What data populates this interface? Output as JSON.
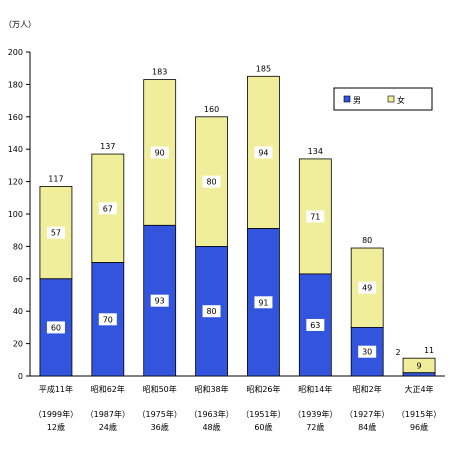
{
  "chart_data": {
    "type": "bar",
    "stacked": true,
    "unit_label": "（万人）",
    "ylim": [
      0,
      200
    ],
    "yticks": [
      0,
      20,
      40,
      60,
      80,
      100,
      120,
      140,
      160,
      180,
      200
    ],
    "grid": false,
    "legend_position": "top-right",
    "categories": [
      {
        "era": "平成11年",
        "year": "（1999年）",
        "age": "12歳"
      },
      {
        "era": "昭和62年",
        "year": "（1987年）",
        "age": "24歳"
      },
      {
        "era": "昭和50年",
        "year": "（1975年）",
        "age": "36歳"
      },
      {
        "era": "昭和38年",
        "year": "（1963年）",
        "age": "48歳"
      },
      {
        "era": "昭和26年",
        "year": "（1951年）",
        "age": "60歳"
      },
      {
        "era": "昭和14年",
        "year": "（1939年）",
        "age": "72歳"
      },
      {
        "era": "昭和2年",
        "year": "（1927年）",
        "age": "84歳"
      },
      {
        "era": "大正4年",
        "year": "（1915年）",
        "age": "96歳"
      }
    ],
    "series": [
      {
        "name": "男",
        "color": "#3355dd",
        "values": [
          60,
          70,
          93,
          80,
          91,
          63,
          30,
          2
        ]
      },
      {
        "name": "女",
        "color": "#f0ee9a",
        "values": [
          57,
          67,
          90,
          80,
          94,
          71,
          49,
          9
        ]
      }
    ],
    "totals": [
      117,
      137,
      183,
      160,
      185,
      134,
      80,
      11
    ]
  }
}
